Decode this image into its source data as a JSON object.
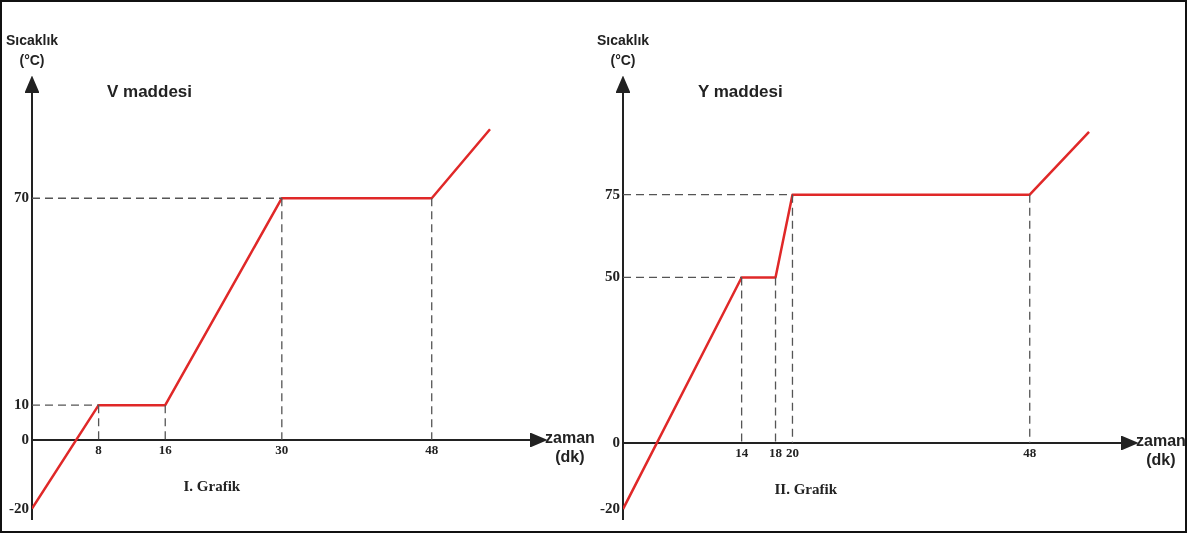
{
  "chart_data": [
    {
      "type": "line",
      "title": "V maddesi",
      "xlabel": "zaman (dk)",
      "ylabel": "Sıcaklık (°C)",
      "annotations": [
        "I. Grafik"
      ],
      "x": [
        0,
        8,
        16,
        30,
        48,
        55
      ],
      "series": [
        {
          "color": "#555555",
          "line_style": "dashed",
          "x": [
            0,
            8,
            null,
            8,
            8,
            null,
            16,
            16,
            null,
            0,
            30,
            null,
            30,
            30,
            null,
            48,
            48
          ],
          "values": [
            10,
            10,
            null,
            10,
            0,
            null,
            10,
            0,
            null,
            70,
            70,
            null,
            70,
            0,
            null,
            70,
            0
          ]
        },
        {
          "color": "#e02828",
          "values": [
            -20,
            10,
            10,
            70,
            70,
            90
          ]
        }
      ],
      "xlim": [
        0,
        58
      ],
      "ylim": [
        -23,
        95
      ],
      "xticks": [
        8,
        16,
        30,
        48
      ],
      "yticks": [
        -20,
        0,
        10,
        70
      ],
      "grid": false,
      "legend": false,
      "marker": "none",
      "line_style": "solid"
    },
    {
      "type": "line",
      "title": "Y maddesi",
      "xlabel": "zaman (dk)",
      "ylabel": "Sıcaklık (°C)",
      "annotations": [
        "II. Grafik"
      ],
      "x": [
        0,
        14,
        18,
        20,
        48,
        55
      ],
      "series": [
        {
          "color": "#555555",
          "line_style": "dashed",
          "x": [
            0,
            14,
            null,
            14,
            14,
            null,
            18,
            18,
            null,
            0,
            20,
            null,
            20,
            20,
            null,
            48,
            48
          ],
          "values": [
            50,
            50,
            null,
            50,
            0,
            null,
            50,
            0,
            null,
            75,
            75,
            null,
            75,
            0,
            null,
            75,
            0
          ]
        },
        {
          "color": "#e02828",
          "values": [
            -20,
            50,
            50,
            75,
            75,
            94
          ]
        }
      ],
      "xlim": [
        0,
        57
      ],
      "ylim": [
        -23,
        100
      ],
      "xticks": [
        14,
        18,
        20,
        48
      ],
      "yticks": [
        -20,
        0,
        50,
        75
      ],
      "grid": false,
      "legend": false,
      "marker": "none",
      "line_style": "solid"
    }
  ]
}
